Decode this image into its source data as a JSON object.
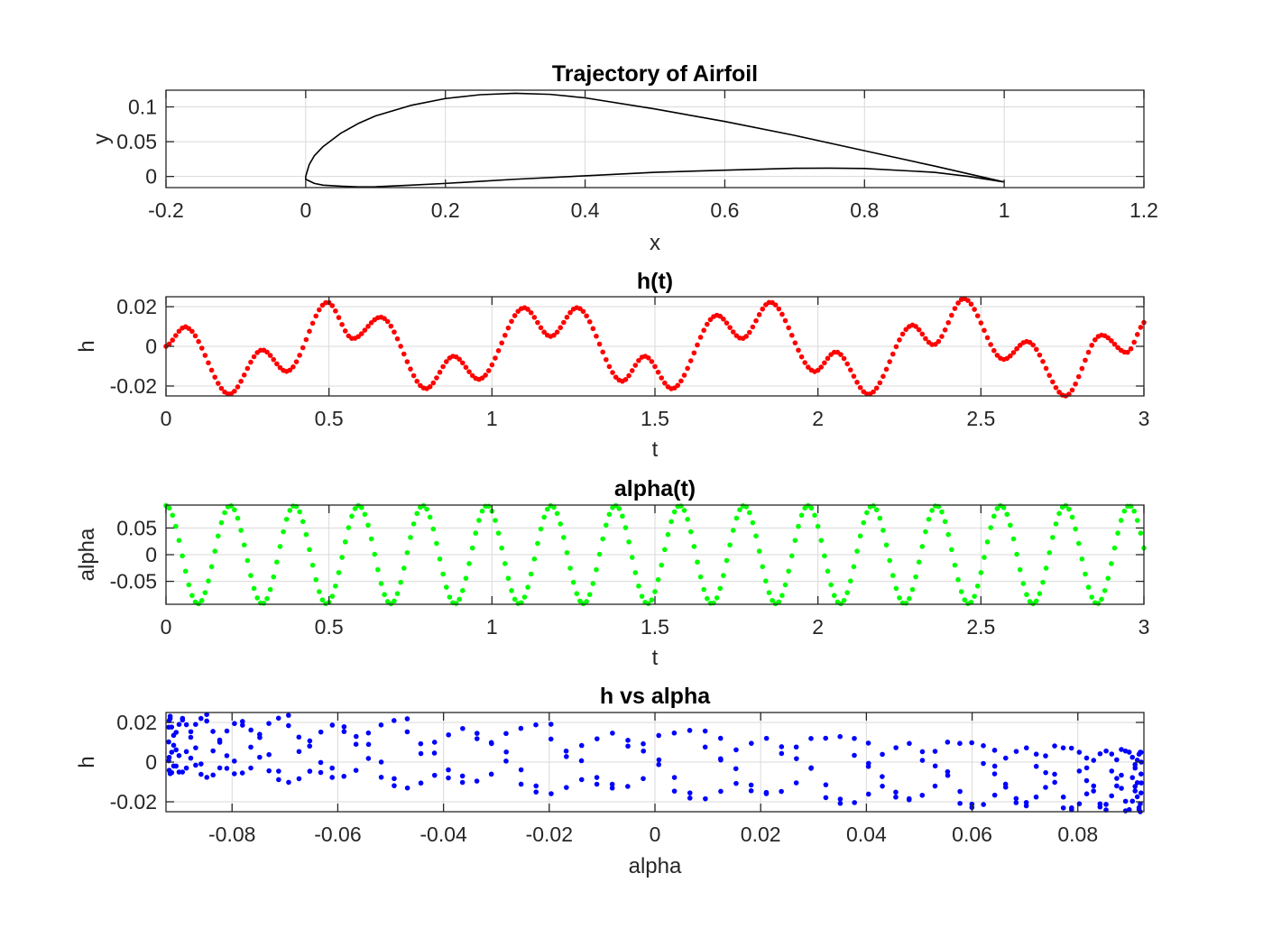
{
  "chart_data": [
    {
      "id": "trajectory",
      "type": "line",
      "title": "Trajectory of Airfoil",
      "xlabel": "x",
      "ylabel": "y",
      "xlim": [
        -0.2,
        1.2
      ],
      "ylim": [
        -0.016,
        0.124
      ],
      "xticks": [
        -0.2,
        0,
        0.2,
        0.4,
        0.6,
        0.8,
        1,
        1.2
      ],
      "xtick_labels": [
        "-0.2",
        "0",
        "0.2",
        "0.4",
        "0.6",
        "0.8",
        "1",
        "1.2"
      ],
      "yticks": [
        0,
        0.05,
        0.1
      ],
      "ytick_labels": [
        "0",
        "0.05",
        "0.1"
      ],
      "grid": true,
      "line_color": "#000000",
      "marker": "none",
      "series": [
        {
          "x": [
            1.0,
            0.95,
            0.9,
            0.8,
            0.7,
            0.6,
            0.5,
            0.4,
            0.35,
            0.3,
            0.25,
            0.2,
            0.15,
            0.1,
            0.075,
            0.05,
            0.025,
            0.0125,
            0.005,
            0.0,
            0.0,
            0.0125,
            0.025,
            0.05,
            0.075,
            0.1,
            0.15,
            0.2,
            0.25,
            0.3,
            0.4,
            0.5,
            0.6,
            0.7,
            0.75,
            0.8,
            0.9,
            0.95,
            1.0
          ],
          "y": [
            -0.008,
            0.0035,
            0.015,
            0.037,
            0.059,
            0.079,
            0.097,
            0.113,
            0.118,
            0.1195,
            0.1175,
            0.112,
            0.102,
            0.087,
            0.076,
            0.062,
            0.043,
            0.03,
            0.017,
            0.0,
            -0.004,
            -0.01,
            -0.0125,
            -0.014,
            -0.015,
            -0.0148,
            -0.0125,
            -0.01,
            -0.007,
            -0.004,
            0.001,
            0.006,
            0.009,
            0.0118,
            0.012,
            0.0115,
            0.006,
            0.0,
            -0.008
          ]
        }
      ]
    },
    {
      "id": "h_of_t",
      "type": "scatter",
      "title": "h(t)",
      "xlabel": "t",
      "ylabel": "h",
      "xlim": [
        0,
        3
      ],
      "ylim": [
        -0.025,
        0.025
      ],
      "xticks": [
        0,
        0.5,
        1,
        1.5,
        2,
        2.5,
        3
      ],
      "xtick_labels": [
        "0",
        "0.5",
        "1",
        "1.5",
        "2",
        "2.5",
        "3"
      ],
      "yticks": [
        -0.02,
        0,
        0.02
      ],
      "ytick_labels": [
        "-0.02",
        "0",
        "0.02"
      ],
      "grid": true,
      "marker_color": "#ff0000",
      "series": [
        {
          "x": [
            0.0,
            0.07,
            0.19,
            0.29,
            0.38,
            0.49,
            0.57,
            0.67,
            0.79,
            0.88,
            0.97,
            1.09,
            1.18,
            1.27,
            1.39,
            1.47,
            1.56,
            1.68,
            1.77,
            1.86,
            1.98,
            2.06,
            2.16,
            2.28,
            2.36,
            2.45,
            2.56,
            2.65,
            2.76,
            2.86,
            2.95,
            3.0
          ],
          "y": [
            0.0,
            0.009,
            -0.024,
            -0.002,
            -0.012,
            0.022,
            0.004,
            0.014,
            -0.021,
            -0.005,
            -0.016,
            0.019,
            0.005,
            0.019,
            -0.017,
            -0.005,
            -0.021,
            0.015,
            0.004,
            0.022,
            -0.012,
            -0.003,
            -0.024,
            0.01,
            0.001,
            0.024,
            -0.006,
            0.002,
            -0.025,
            0.005,
            -0.003,
            0.012
          ]
        }
      ]
    },
    {
      "id": "alpha_of_t",
      "type": "scatter",
      "title": "alpha(t)",
      "xlabel": "t",
      "ylabel": "alpha",
      "xlim": [
        0,
        3
      ],
      "ylim": [
        -0.093,
        0.093
      ],
      "xticks": [
        0,
        0.5,
        1,
        1.5,
        2,
        2.5,
        3
      ],
      "xtick_labels": [
        "0",
        "0.5",
        "1",
        "1.5",
        "2",
        "2.5",
        "3"
      ],
      "yticks": [
        -0.05,
        0,
        0.05
      ],
      "ytick_labels": [
        "-0.05",
        "0",
        "0.05"
      ],
      "grid": true,
      "marker_color": "#00ff00",
      "series": [
        {
          "amplitude": 0.092,
          "period": 0.197,
          "phase": 1.571,
          "t_step": 0.01,
          "formula": "alpha = 0.092 * sin(2*pi*t/0.197 + pi/2)"
        }
      ]
    },
    {
      "id": "h_vs_alpha",
      "type": "scatter",
      "title": "h vs alpha",
      "xlabel": "alpha",
      "ylabel": "h",
      "xlim": [
        -0.0925,
        0.0925
      ],
      "ylim": [
        -0.025,
        0.025
      ],
      "xticks": [
        -0.08,
        -0.06,
        -0.04,
        -0.02,
        0,
        0.02,
        0.04,
        0.06,
        0.08
      ],
      "xtick_labels": [
        "-0.08",
        "-0.06",
        "-0.04",
        "-0.02",
        "0",
        "0.02",
        "0.04",
        "0.06",
        "0.08"
      ],
      "yticks": [
        -0.02,
        0,
        0.02
      ],
      "ytick_labels": [
        "-0.02",
        "0",
        "0.02"
      ],
      "grid": true,
      "marker_color": "#0000ff",
      "series": [
        {
          "x_from": "alpha_of_t",
          "y_from": "h_of_t"
        }
      ]
    }
  ]
}
